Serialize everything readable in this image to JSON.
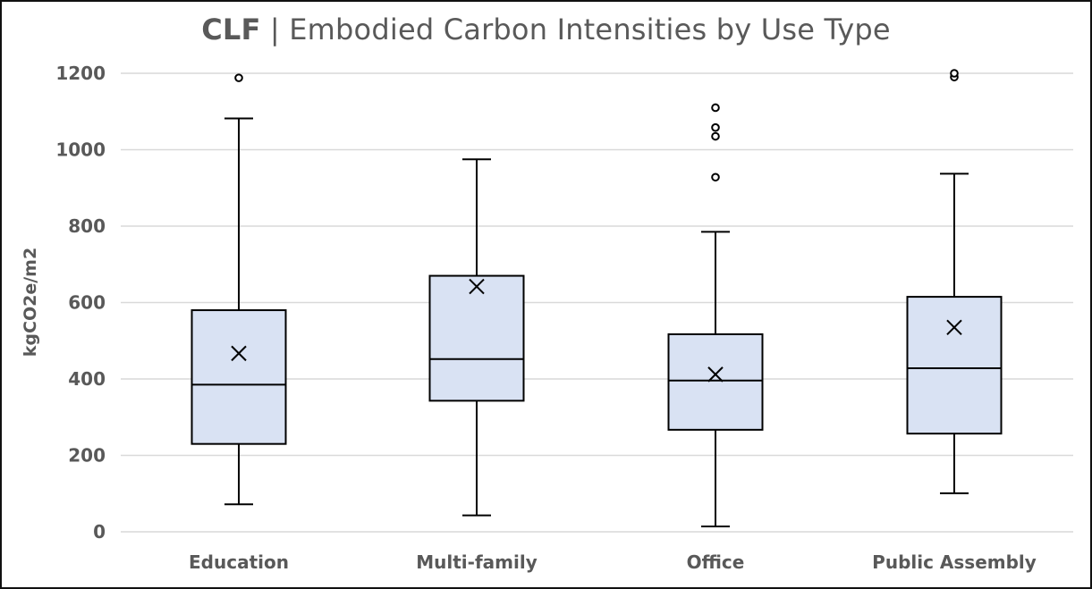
{
  "colors": {
    "box_fill": "#d9e2f3",
    "stroke": "#000000",
    "grid": "#d9d9d9",
    "text": "#595959",
    "frame": "#111111"
  },
  "chart_data": {
    "type": "box",
    "title_bold": "CLF",
    "title_rest": " | Embodied Carbon Intensities by Use Type",
    "xlabel": "",
    "ylabel": "kgCO2e/m2",
    "ylim": [
      0,
      1200
    ],
    "yticks": [
      0,
      200,
      400,
      600,
      800,
      1000,
      1200
    ],
    "ytick_labels": [
      "0",
      "200",
      "400",
      "600",
      "800",
      "1000",
      "1200"
    ],
    "grid": true,
    "legend": "none",
    "mean_marker": "x",
    "categories": [
      "Education",
      "Multi-family",
      "Office",
      "Public Assembly"
    ],
    "boxes": [
      {
        "category": "Education",
        "whisker_low": 72,
        "q1": 230,
        "median": 385,
        "q3": 580,
        "whisker_high": 1082,
        "mean": 467,
        "outliers": [
          1188
        ]
      },
      {
        "category": "Multi-family",
        "whisker_low": 43,
        "q1": 343,
        "median": 452,
        "q3": 670,
        "whisker_high": 975,
        "mean": 642,
        "outliers": []
      },
      {
        "category": "Office",
        "whisker_low": 14,
        "q1": 267,
        "median": 396,
        "q3": 517,
        "whisker_high": 785,
        "mean": 412,
        "outliers": [
          928,
          1035,
          1058,
          1110
        ]
      },
      {
        "category": "Public Assembly",
        "whisker_low": 101,
        "q1": 257,
        "median": 428,
        "q3": 615,
        "whisker_high": 937,
        "mean": 535,
        "outliers": [
          1190,
          1200
        ]
      }
    ]
  }
}
